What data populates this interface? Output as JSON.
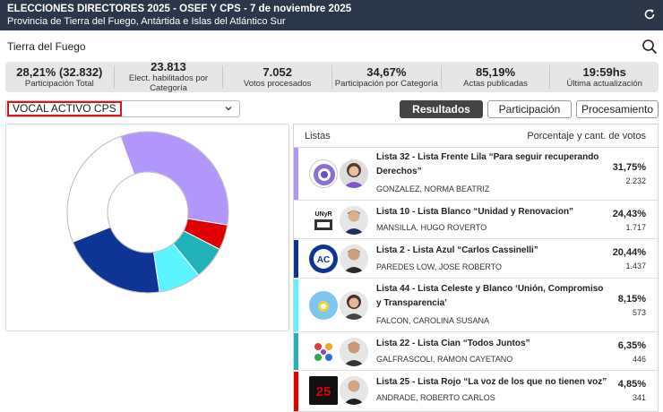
{
  "header": {
    "title": "ELECCIONES DIRECTORES 2025 - OSEF Y CPS - 7 de noviembre 2025",
    "subtitle": "Provincia de Tierra del Fuego, Antártida e Islas del Atlántico Sur",
    "refresh_icon": "refresh-icon"
  },
  "region": "Tierra del Fuego",
  "search_icon": "search-icon",
  "stats": [
    {
      "value": "28,21% (32.832)",
      "label": "Participación Total"
    },
    {
      "value": "23.813",
      "label": "Elect. habilitados por Categoría"
    },
    {
      "value": "7.052",
      "label": "Votos procesados"
    },
    {
      "value": "34,67%",
      "label": "Participación por Categoría"
    },
    {
      "value": "85,19%",
      "label": "Actas publicadas"
    },
    {
      "value": "19:59hs",
      "label": "Última actualización"
    }
  ],
  "category_select": {
    "value": "VOCAL ACTIVO CPS"
  },
  "tabs": {
    "resultados": "Resultados",
    "participacion": "Participación",
    "procesamiento": "Procesamiento"
  },
  "list_header": {
    "left": "Listas",
    "right": "Porcentaje y cant. de votos"
  },
  "chart_data": {
    "type": "pie",
    "series": [
      {
        "name": "Lista 32",
        "value": 31.75,
        "color": "#b197fc"
      },
      {
        "name": "Lista 25",
        "value": 4.85,
        "color": "#e00000"
      },
      {
        "name": "Lista 22",
        "value": 6.35,
        "color": "#20b2b8"
      },
      {
        "name": "Lista 44",
        "value": 8.15,
        "color": "#5cf5ff"
      },
      {
        "name": "Lista 2",
        "value": 20.44,
        "color": "#0e3494"
      },
      {
        "name": "Lista 10",
        "value": 24.43,
        "color": "#ffffff"
      }
    ]
  },
  "lists": [
    {
      "name": "Lista 32 - Lista Frente Lila “Para seguir recuperando Derechos”",
      "candidate": "GONZALEZ, NORMA BEATRIZ",
      "pct": "31,75%",
      "votes": "2.232",
      "color": "#b197fc"
    },
    {
      "name": "Lista 10 - Lista Blanco “Unidad y Renovacion”",
      "candidate": "MANSILLA, HUGO ROVERTO",
      "pct": "24,43%",
      "votes": "1.717",
      "color": "#ffffff"
    },
    {
      "name": "Lista 2 - Lista Azul “Carlos Cassinelli”",
      "candidate": "PAREDES LOW, JOSE ROBERTO",
      "pct": "20,44%",
      "votes": "1.437",
      "color": "#0e3494"
    },
    {
      "name": "Lista 44 - Lista Celeste y Blanco ‘Unión, Compromiso y Transparencia’",
      "candidate": "FALCON, CAROLINA SUSANA",
      "pct": "8,15%",
      "votes": "573",
      "color": "#5cf5ff"
    },
    {
      "name": "Lista 22 - Lista Cian “Todos Juntos”",
      "candidate": "GALFRASCOLI, RAMON CAYETANO",
      "pct": "6,35%",
      "votes": "446",
      "color": "#20b2b8"
    },
    {
      "name": "Lista 25 - Lista Rojo “La voz de los que no tienen voz”",
      "candidate": "ANDRADE, ROBERTO CARLOS",
      "pct": "4,85%",
      "votes": "341",
      "color": "#e00000"
    }
  ]
}
